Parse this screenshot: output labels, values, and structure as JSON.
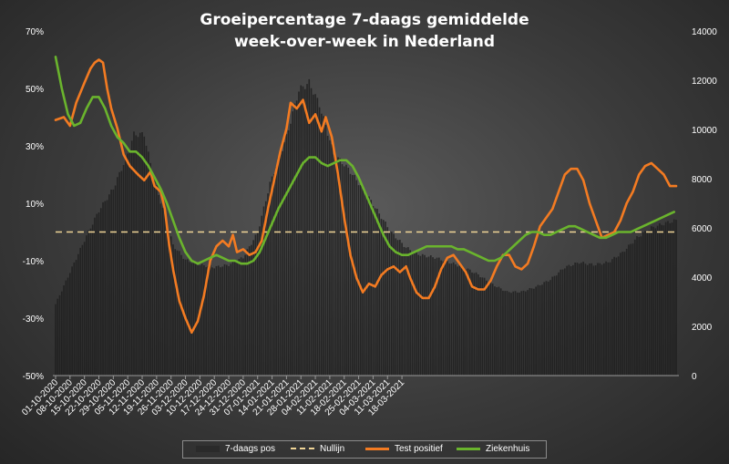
{
  "chart_data": {
    "type": "bar",
    "title": "Groeipercentage 7-daags gemiddelde",
    "subtitle": "week-over-week in Nederland",
    "y_left": {
      "ticks": [
        "70%",
        "50%",
        "30%",
        "10%",
        "-10%",
        "-30%",
        "-50%"
      ],
      "range": [
        -50,
        70
      ]
    },
    "y_right": {
      "ticks": [
        "14000",
        "12000",
        "10000",
        "8000",
        "6000",
        "4000",
        "2000",
        "0"
      ],
      "range": [
        0,
        14000
      ]
    },
    "x_tick_labels": [
      "01-10-2020",
      "08-10-2020",
      "15-10-2020",
      "22-10-2020",
      "29-10-2020",
      "05-11-2020",
      "12-11-2020",
      "19-11-2020",
      "26-11-2020",
      "03-12-2020",
      "10-12-2020",
      "17-12-2020",
      "24-12-2020",
      "31-12-2020",
      "07-01-2021",
      "14-01-2021",
      "21-01-2021",
      "28-01-2021",
      "04-02-2021",
      "11-02-2021",
      "18-02-2021",
      "25-02-2021",
      "04-03-2021",
      "11-03-2021",
      "18-03-2021"
    ],
    "series": [
      {
        "name": "7-daags pos",
        "axis": "right",
        "kind": "bar",
        "color": "#1e1e1e",
        "points": [
          [
            0,
            2900
          ],
          [
            7,
            4200
          ],
          [
            14,
            5500
          ],
          [
            21,
            6700
          ],
          [
            28,
            7600
          ],
          [
            35,
            9000
          ],
          [
            38,
            9800
          ],
          [
            43,
            9800
          ],
          [
            47,
            8200
          ],
          [
            53,
            6500
          ],
          [
            57,
            5300
          ],
          [
            63,
            4700
          ],
          [
            70,
            4500
          ],
          [
            77,
            4400
          ],
          [
            84,
            4500
          ],
          [
            91,
            4800
          ],
          [
            98,
            5800
          ],
          [
            104,
            7800
          ],
          [
            112,
            9700
          ],
          [
            118,
            11600
          ],
          [
            123,
            11900
          ],
          [
            128,
            11000
          ],
          [
            135,
            9000
          ],
          [
            142,
            8400
          ],
          [
            149,
            7600
          ],
          [
            156,
            6700
          ],
          [
            163,
            5800
          ],
          [
            170,
            5200
          ],
          [
            177,
            4900
          ],
          [
            184,
            4800
          ],
          [
            191,
            4600
          ],
          [
            198,
            4400
          ],
          [
            205,
            4100
          ],
          [
            212,
            3700
          ],
          [
            219,
            3400
          ],
          [
            226,
            3400
          ],
          [
            233,
            3600
          ],
          [
            240,
            3900
          ],
          [
            247,
            4400
          ],
          [
            254,
            4600
          ],
          [
            261,
            4500
          ],
          [
            268,
            4600
          ],
          [
            275,
            5000
          ],
          [
            282,
            5600
          ],
          [
            289,
            6000
          ],
          [
            296,
            6200
          ],
          [
            301,
            6300
          ]
        ]
      },
      {
        "name": "Test positief",
        "axis": "left",
        "kind": "line",
        "color": "#f37b22",
        "points": [
          [
            0,
            39
          ],
          [
            4,
            40
          ],
          [
            7,
            37
          ],
          [
            10,
            45
          ],
          [
            14,
            52
          ],
          [
            17,
            57
          ],
          [
            19,
            59
          ],
          [
            21,
            60
          ],
          [
            23,
            59
          ],
          [
            25,
            50
          ],
          [
            27,
            43
          ],
          [
            30,
            36
          ],
          [
            33,
            27
          ],
          [
            36,
            23
          ],
          [
            40,
            20
          ],
          [
            43,
            18
          ],
          [
            46,
            21
          ],
          [
            48,
            16
          ],
          [
            51,
            14
          ],
          [
            53,
            8
          ],
          [
            55,
            -4
          ],
          [
            57,
            -13
          ],
          [
            60,
            -24
          ],
          [
            63,
            -30
          ],
          [
            66,
            -35
          ],
          [
            69,
            -31
          ],
          [
            72,
            -22
          ],
          [
            75,
            -10
          ],
          [
            78,
            -5
          ],
          [
            81,
            -3
          ],
          [
            84,
            -5
          ],
          [
            86,
            -1
          ],
          [
            88,
            -7
          ],
          [
            91,
            -6
          ],
          [
            94,
            -8
          ],
          [
            97,
            -7
          ],
          [
            100,
            -3
          ],
          [
            103,
            8
          ],
          [
            106,
            18
          ],
          [
            109,
            28
          ],
          [
            112,
            36
          ],
          [
            114,
            45
          ],
          [
            117,
            43
          ],
          [
            120,
            46
          ],
          [
            123,
            38
          ],
          [
            126,
            41
          ],
          [
            129,
            35
          ],
          [
            131,
            40
          ],
          [
            134,
            33
          ],
          [
            137,
            20
          ],
          [
            140,
            5
          ],
          [
            143,
            -8
          ],
          [
            146,
            -16
          ],
          [
            149,
            -21
          ],
          [
            152,
            -18
          ],
          [
            155,
            -19
          ],
          [
            158,
            -15
          ],
          [
            161,
            -13
          ],
          [
            164,
            -12
          ],
          [
            167,
            -14
          ],
          [
            170,
            -12
          ],
          [
            172,
            -16
          ],
          [
            175,
            -21
          ],
          [
            178,
            -23
          ],
          [
            181,
            -23
          ],
          [
            184,
            -19
          ],
          [
            187,
            -13
          ],
          [
            190,
            -9
          ],
          [
            193,
            -8
          ],
          [
            196,
            -11
          ],
          [
            199,
            -14
          ],
          [
            202,
            -19
          ],
          [
            205,
            -20
          ],
          [
            208,
            -20
          ],
          [
            211,
            -17
          ],
          [
            214,
            -12
          ],
          [
            217,
            -8
          ],
          [
            220,
            -8
          ],
          [
            223,
            -12
          ],
          [
            226,
            -13
          ],
          [
            229,
            -11
          ],
          [
            232,
            -5
          ],
          [
            235,
            2
          ],
          [
            238,
            5
          ],
          [
            241,
            8
          ],
          [
            244,
            14
          ],
          [
            247,
            20
          ],
          [
            250,
            22
          ],
          [
            253,
            22
          ],
          [
            256,
            18
          ],
          [
            259,
            10
          ],
          [
            262,
            4
          ],
          [
            265,
            -2
          ],
          [
            268,
            -1
          ],
          [
            271,
            0
          ],
          [
            274,
            4
          ],
          [
            277,
            10
          ],
          [
            280,
            14
          ],
          [
            283,
            20
          ],
          [
            286,
            23
          ],
          [
            289,
            24
          ],
          [
            292,
            22
          ],
          [
            295,
            20
          ],
          [
            298,
            16
          ],
          [
            301,
            16
          ]
        ]
      },
      {
        "name": "Ziekenhuis",
        "axis": "left",
        "kind": "line",
        "color": "#6ab42d",
        "points": [
          [
            0,
            61
          ],
          [
            3,
            50
          ],
          [
            6,
            41
          ],
          [
            9,
            37
          ],
          [
            12,
            38
          ],
          [
            15,
            43
          ],
          [
            18,
            47
          ],
          [
            21,
            47
          ],
          [
            24,
            43
          ],
          [
            27,
            37
          ],
          [
            30,
            33
          ],
          [
            33,
            31
          ],
          [
            36,
            28
          ],
          [
            39,
            28
          ],
          [
            42,
            26
          ],
          [
            45,
            23
          ],
          [
            48,
            19
          ],
          [
            51,
            15
          ],
          [
            54,
            10
          ],
          [
            57,
            4
          ],
          [
            60,
            -2
          ],
          [
            63,
            -7
          ],
          [
            66,
            -10
          ],
          [
            69,
            -11
          ],
          [
            72,
            -10
          ],
          [
            75,
            -9
          ],
          [
            78,
            -8
          ],
          [
            81,
            -9
          ],
          [
            84,
            -10
          ],
          [
            87,
            -10
          ],
          [
            90,
            -11
          ],
          [
            93,
            -11
          ],
          [
            96,
            -10
          ],
          [
            99,
            -7
          ],
          [
            102,
            -2
          ],
          [
            105,
            3
          ],
          [
            108,
            8
          ],
          [
            111,
            12
          ],
          [
            114,
            16
          ],
          [
            117,
            20
          ],
          [
            120,
            24
          ],
          [
            123,
            26
          ],
          [
            126,
            26
          ],
          [
            129,
            24
          ],
          [
            132,
            23
          ],
          [
            135,
            24
          ],
          [
            138,
            25
          ],
          [
            141,
            25
          ],
          [
            144,
            23
          ],
          [
            147,
            19
          ],
          [
            150,
            14
          ],
          [
            153,
            9
          ],
          [
            156,
            4
          ],
          [
            159,
            -1
          ],
          [
            162,
            -5
          ],
          [
            165,
            -7
          ],
          [
            168,
            -8
          ],
          [
            171,
            -8
          ],
          [
            174,
            -7
          ],
          [
            177,
            -6
          ],
          [
            180,
            -5
          ],
          [
            183,
            -5
          ],
          [
            186,
            -5
          ],
          [
            189,
            -5
          ],
          [
            192,
            -5
          ],
          [
            195,
            -6
          ],
          [
            198,
            -6
          ],
          [
            201,
            -7
          ],
          [
            204,
            -8
          ],
          [
            207,
            -9
          ],
          [
            210,
            -10
          ],
          [
            213,
            -10
          ],
          [
            216,
            -9
          ],
          [
            219,
            -7
          ],
          [
            222,
            -5
          ],
          [
            225,
            -3
          ],
          [
            228,
            -1
          ],
          [
            231,
            0
          ],
          [
            234,
            0
          ],
          [
            237,
            -1
          ],
          [
            240,
            -1
          ],
          [
            243,
            0
          ],
          [
            246,
            1
          ],
          [
            249,
            2
          ],
          [
            252,
            2
          ],
          [
            255,
            1
          ],
          [
            258,
            0
          ],
          [
            261,
            -1
          ],
          [
            264,
            -2
          ],
          [
            267,
            -2
          ],
          [
            270,
            -1
          ],
          [
            273,
            0
          ],
          [
            276,
            0
          ],
          [
            279,
            0
          ],
          [
            282,
            1
          ],
          [
            285,
            2
          ],
          [
            288,
            3
          ],
          [
            291,
            4
          ],
          [
            294,
            5
          ],
          [
            297,
            6
          ],
          [
            300,
            7
          ]
        ]
      },
      {
        "name": "Nullijn",
        "axis": "left",
        "kind": "reference",
        "color": "#f0d597",
        "value": 0
      }
    ],
    "legend": {
      "placement": "bottom",
      "entries": [
        "7-daags pos",
        "Nullijn",
        "Test positief",
        "Ziekenhuis"
      ]
    }
  },
  "colors": {
    "bar": "#1e1e1e",
    "test_positief": "#f37b22",
    "ziekenhuis": "#6ab42d",
    "nullijn": "#f0d597"
  }
}
